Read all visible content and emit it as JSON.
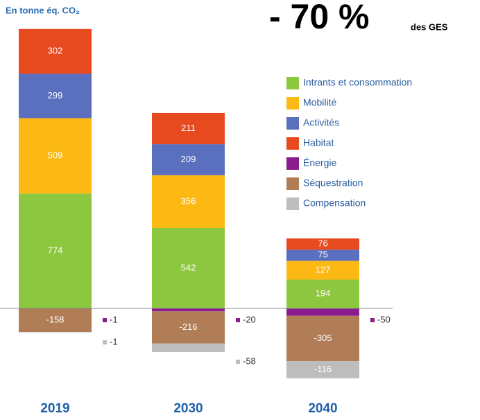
{
  "chart_data": {
    "type": "stacked-bar",
    "subtitle": "En tonne éq. CO₂",
    "title": "- 70 %",
    "annotation": "des GES",
    "categories": [
      "2019",
      "2030",
      "2040"
    ],
    "ylim": [
      -500,
      2000
    ],
    "series": [
      {
        "name": "Intrants et consommation",
        "color": "#8dc63f",
        "values": [
          774,
          542,
          194
        ]
      },
      {
        "name": "Mobilité",
        "color": "#fdb913",
        "values": [
          509,
          356,
          127
        ]
      },
      {
        "name": "Activités",
        "color": "#5b6fbf",
        "values": [
          299,
          209,
          75
        ]
      },
      {
        "name": "Habitat",
        "color": "#e84a1f",
        "values": [
          302,
          211,
          76
        ]
      },
      {
        "name": "Énergie",
        "color": "#8b1c8c",
        "values": [
          -1,
          -20,
          -50
        ]
      },
      {
        "name": "Séquestration",
        "color": "#b07d56",
        "values": [
          -158,
          -216,
          -305
        ]
      },
      {
        "name": "Compensation",
        "color": "#bdbdbd",
        "values": [
          -1,
          -58,
          -116
        ]
      }
    ]
  }
}
